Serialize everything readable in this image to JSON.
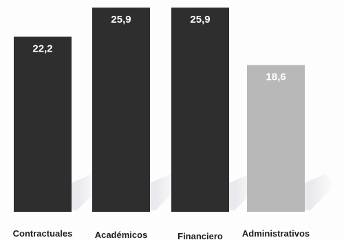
{
  "chart_data": {
    "type": "bar",
    "categories": [
      "Contractuales",
      "Académicos",
      "Financiero",
      "Administrativos"
    ],
    "values": [
      22.2,
      25.9,
      25.9,
      18.6
    ],
    "value_labels": [
      "22,2",
      "25,9",
      "25,9",
      "18,6"
    ],
    "ylim": [
      0,
      25.9
    ],
    "grid": false,
    "legend": "none",
    "bar_colors": [
      "#2e2e2e",
      "#2e2e2e",
      "#2e2e2e",
      "#b8b8b8"
    ],
    "value_label_color": "#ffffff",
    "category_label_color": "#1e1e1e"
  }
}
